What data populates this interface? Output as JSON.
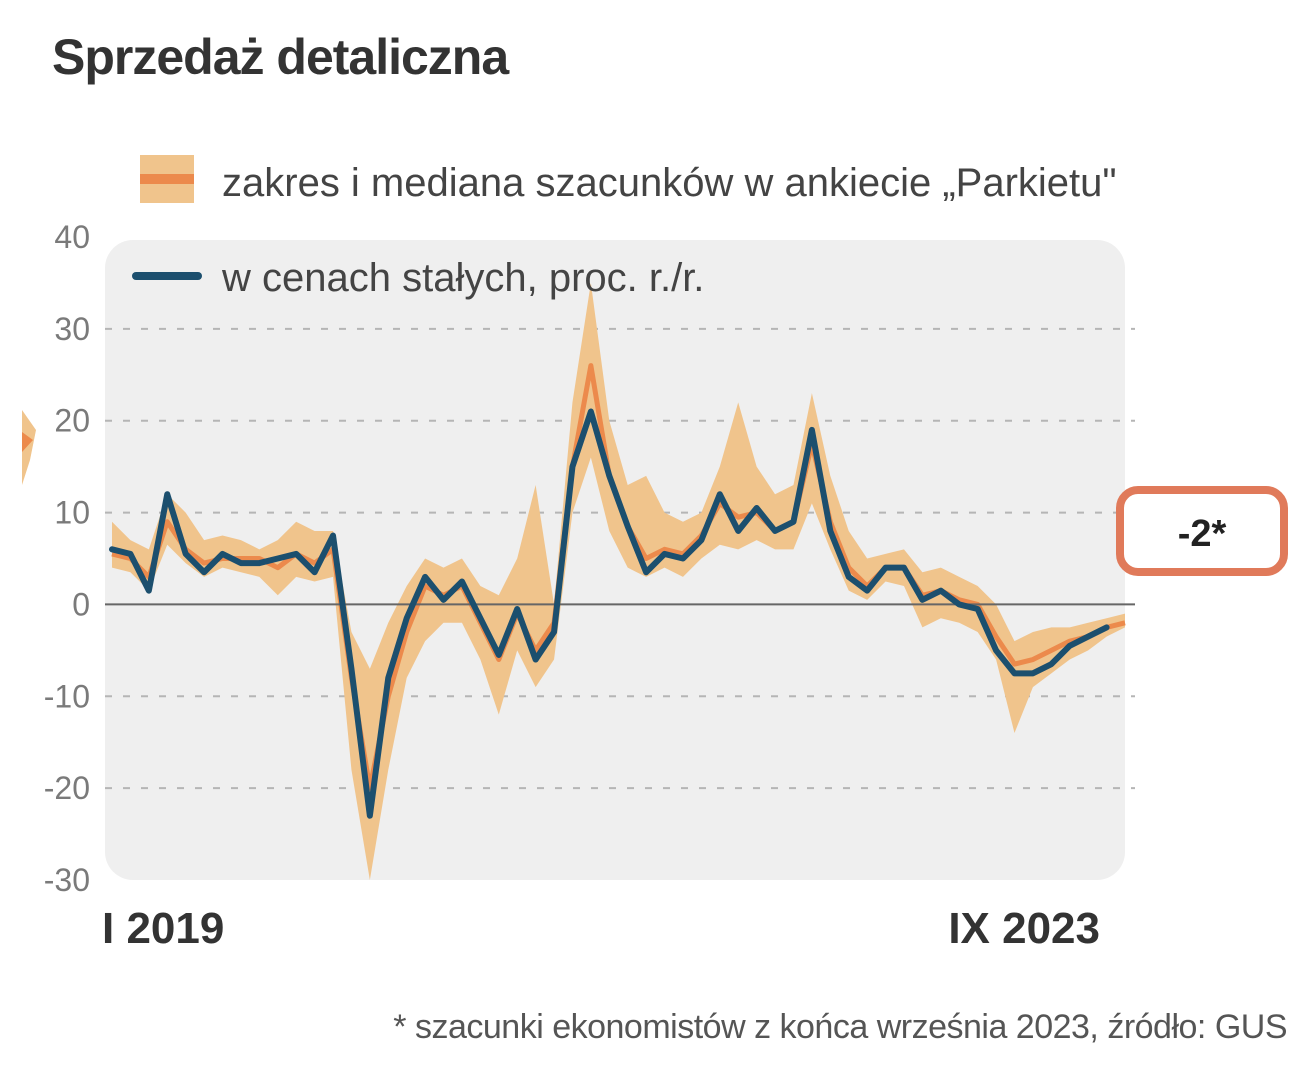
{
  "title": "Sprzedaż detaliczna",
  "footnote": "* szacunki ekonomistów z końca września 2023, źródło: GUS",
  "colors": {
    "line": "#1c4f6e",
    "band": "#f0c48c",
    "median": "#ec8a4c",
    "estimate_border": "#e07a5a",
    "plot_bg": "#efefef",
    "zero_line": "#666666",
    "grid": "#b5b5b5"
  },
  "chart_data": {
    "type": "line",
    "title": "Sprzedaż detaliczna",
    "ylim": [
      -30,
      40
    ],
    "yticks": [
      40,
      30,
      20,
      10,
      0,
      -10,
      -20,
      -30
    ],
    "start_label": "I 2019",
    "end_label": "IX 2023",
    "legend": {
      "band": "zakres i mediana szacunków w ankiecie „Parkietu\"",
      "line": "w cenach stałych, proc. r./r."
    },
    "estimate_label": "-2*",
    "estimate_value": -2,
    "series": [
      {
        "name": "w cenach stałych, proc. r./r.",
        "values": [
          6,
          5.5,
          1.5,
          12,
          5.5,
          3.5,
          5.5,
          4.5,
          4.5,
          5,
          5.5,
          3.5,
          7.5,
          -7,
          -23,
          -8,
          -1.5,
          3,
          0.5,
          2.5,
          -1.5,
          -5.5,
          -0.5,
          -6,
          -3,
          15,
          21,
          14,
          8.5,
          3.5,
          5.5,
          5,
          7,
          12,
          8,
          10.5,
          8,
          9,
          19,
          8,
          3,
          1.5,
          4,
          4,
          0.5,
          1.5,
          0,
          -0.5,
          -5,
          -7.5,
          -7.5,
          -6.5,
          -4.5,
          -3.5,
          -2.5
        ]
      },
      {
        "name": "zakres szacunków (min)",
        "values": [
          4,
          3.5,
          1.5,
          6.5,
          4.5,
          3,
          4,
          3.5,
          3,
          1,
          3,
          2.5,
          3,
          -18,
          -30,
          -18,
          -8,
          -4,
          -2,
          -2,
          -6,
          -12,
          -5,
          -9,
          -6,
          10,
          16,
          8,
          4,
          3,
          4,
          3,
          5,
          6.5,
          6,
          7,
          6,
          6,
          11,
          6,
          1.5,
          0.5,
          2.5,
          2,
          -2.5,
          -1.5,
          -2,
          -3,
          -6,
          -14,
          -9,
          -7.5,
          -6,
          -5,
          -3.5,
          -2.5
        ]
      },
      {
        "name": "zakres szacunków (max)",
        "values": [
          9,
          7,
          6,
          12,
          10,
          7,
          7.5,
          7,
          6,
          7,
          9,
          8,
          8,
          -3,
          -7,
          -2,
          2,
          5,
          4,
          5,
          2,
          1,
          5,
          13,
          0,
          22,
          35,
          20,
          13,
          14,
          10,
          9,
          10,
          15,
          22,
          15,
          12,
          13,
          23,
          14,
          8,
          5,
          5.5,
          6,
          3.5,
          4,
          3,
          2,
          0,
          -4,
          -3,
          -2.5,
          -2.5,
          -2,
          -1.5,
          -1
        ]
      },
      {
        "name": "mediana szacunków",
        "values": [
          5.5,
          5,
          3,
          9,
          6,
          4.5,
          5,
          5,
          5,
          4,
          5.5,
          4.5,
          6,
          -8,
          -20,
          -10,
          -3,
          2,
          1,
          2,
          -2,
          -6,
          -1,
          -5,
          -2,
          15,
          26,
          14,
          8.5,
          5,
          6,
          5.5,
          7.5,
          11,
          9.5,
          10,
          8,
          9,
          17.5,
          9,
          4,
          2,
          4,
          4,
          1,
          1.5,
          0.5,
          0,
          -3.5,
          -6.5,
          -6,
          -5,
          -4,
          -3.5,
          -2.5,
          -2
        ]
      }
    ]
  }
}
